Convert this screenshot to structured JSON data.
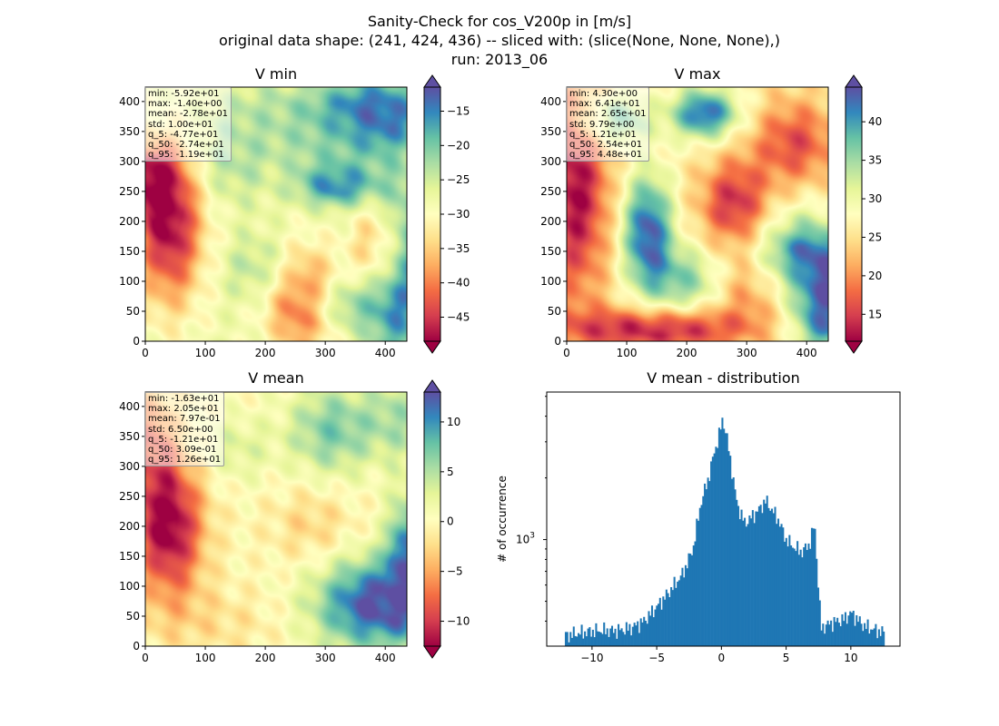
{
  "figure": {
    "title_lines": [
      "Sanity-Check for cos_V200p in [m/s]",
      "original data shape: (241, 424, 436) -- sliced with: (slice(None, None, None),)",
      "run: 2013_06"
    ]
  },
  "colormap": {
    "name": "Spectral",
    "stops": [
      "#9e0142",
      "#d53e4f",
      "#f46d43",
      "#fdae61",
      "#fee08b",
      "#ffffbf",
      "#e6f598",
      "#abdda4",
      "#66c2a5",
      "#3288bd",
      "#5e4fa2"
    ]
  },
  "chart_data": [
    {
      "id": "vmin",
      "type": "heatmap",
      "title": "V min",
      "xlim": [
        0,
        436
      ],
      "ylim": [
        0,
        424
      ],
      "xticks": [
        0,
        100,
        200,
        300,
        400
      ],
      "yticks": [
        0,
        50,
        100,
        150,
        200,
        250,
        300,
        350,
        400
      ],
      "color_range": [
        -48.5,
        -11.5
      ],
      "colorbar_ticks": [
        -45,
        -40,
        -35,
        -30,
        -25,
        -20,
        -15
      ],
      "stats": [
        "min: -5.92e+01",
        "max: -1.40e+00",
        "mean: -2.78e+01",
        "std: 1.00e+01",
        "q_5: -4.77e+01",
        "q_50: -2.74e+01",
        "q_95: -1.19e+01"
      ],
      "field_base": -28,
      "features": [
        {
          "x": 40,
          "y": 190,
          "v": -48,
          "sx": 40,
          "sy": 90
        },
        {
          "x": 15,
          "y": 270,
          "v": -46,
          "sx": 30,
          "sy": 40
        },
        {
          "x": 380,
          "y": 380,
          "v": -13,
          "sx": 70,
          "sy": 45
        },
        {
          "x": 320,
          "y": 260,
          "v": -15,
          "sx": 45,
          "sy": 25
        },
        {
          "x": 420,
          "y": 110,
          "v": -13,
          "sx": 35,
          "sy": 110
        },
        {
          "x": 260,
          "y": 70,
          "v": -44,
          "sx": 40,
          "sy": 60
        },
        {
          "x": 390,
          "y": 160,
          "v": -42,
          "sx": 30,
          "sy": 50
        },
        {
          "x": 140,
          "y": 300,
          "v": -23,
          "sx": 50,
          "sy": 50
        },
        {
          "x": 200,
          "y": 120,
          "v": -22,
          "sx": 45,
          "sy": 40
        },
        {
          "x": 330,
          "y": 60,
          "v": -20,
          "sx": 40,
          "sy": 30
        },
        {
          "x": 300,
          "y": 330,
          "v": -24,
          "sx": 60,
          "sy": 40
        },
        {
          "x": 200,
          "y": 380,
          "v": -24,
          "sx": 60,
          "sy": 40
        }
      ]
    },
    {
      "id": "vmax",
      "type": "heatmap",
      "title": "V max",
      "xlim": [
        0,
        436
      ],
      "ylim": [
        0,
        424
      ],
      "xticks": [
        0,
        100,
        200,
        300,
        400
      ],
      "yticks": [
        0,
        50,
        100,
        150,
        200,
        250,
        300,
        350,
        400
      ],
      "color_range": [
        11.5,
        44.5
      ],
      "colorbar_ticks": [
        15,
        20,
        25,
        30,
        35,
        40
      ],
      "stats": [
        "min: 4.30e+00",
        "max: 6.41e+01",
        "mean: 2.65e+01",
        "std: 9.79e+00",
        "q_5: 1.21e+01",
        "q_50: 2.54e+01",
        "q_95: 4.48e+01"
      ],
      "field_base": 26,
      "features": [
        {
          "x": 135,
          "y": 180,
          "v": 44,
          "sx": 30,
          "sy": 70
        },
        {
          "x": 230,
          "y": 380,
          "v": 43,
          "sx": 40,
          "sy": 30
        },
        {
          "x": 390,
          "y": 120,
          "v": 44,
          "sx": 50,
          "sy": 60
        },
        {
          "x": 430,
          "y": 60,
          "v": 43,
          "sx": 30,
          "sy": 60
        },
        {
          "x": 80,
          "y": 370,
          "v": 38,
          "sx": 40,
          "sy": 30
        },
        {
          "x": 15,
          "y": 250,
          "v": 12,
          "sx": 40,
          "sy": 130
        },
        {
          "x": 150,
          "y": 20,
          "v": 12,
          "sx": 110,
          "sy": 25
        },
        {
          "x": 280,
          "y": 230,
          "v": 14,
          "sx": 40,
          "sy": 50
        },
        {
          "x": 330,
          "y": 80,
          "v": 17,
          "sx": 50,
          "sy": 40
        },
        {
          "x": 380,
          "y": 330,
          "v": 16,
          "sx": 50,
          "sy": 50
        },
        {
          "x": 200,
          "y": 100,
          "v": 36,
          "sx": 40,
          "sy": 40
        }
      ]
    },
    {
      "id": "vmean",
      "type": "heatmap",
      "title": "V mean",
      "xlim": [
        0,
        436
      ],
      "ylim": [
        0,
        424
      ],
      "xticks": [
        0,
        100,
        200,
        300,
        400
      ],
      "yticks": [
        0,
        50,
        100,
        150,
        200,
        250,
        300,
        350,
        400
      ],
      "color_range": [
        -12.5,
        13
      ],
      "colorbar_ticks": [
        -10,
        -5,
        0,
        5,
        10
      ],
      "stats": [
        "min: -1.63e+01",
        "max: 2.05e+01",
        "mean: 7.97e-01",
        "std: 6.50e+00",
        "q_5: -1.21e+01",
        "q_50: 3.09e-01",
        "q_95: 1.26e+01"
      ],
      "field_base": 0,
      "features": [
        {
          "x": 40,
          "y": 200,
          "v": -13,
          "sx": 40,
          "sy": 85
        },
        {
          "x": 10,
          "y": 330,
          "v": -7,
          "sx": 25,
          "sy": 70
        },
        {
          "x": 380,
          "y": 70,
          "v": 13,
          "sx": 70,
          "sy": 55
        },
        {
          "x": 430,
          "y": 150,
          "v": 10,
          "sx": 20,
          "sy": 70
        },
        {
          "x": 310,
          "y": 360,
          "v": 7,
          "sx": 50,
          "sy": 55
        },
        {
          "x": 420,
          "y": 380,
          "v": 5,
          "sx": 40,
          "sy": 50
        },
        {
          "x": 150,
          "y": 330,
          "v": 3,
          "sx": 45,
          "sy": 40
        },
        {
          "x": 120,
          "y": 40,
          "v": -2,
          "sx": 80,
          "sy": 40
        },
        {
          "x": 280,
          "y": 200,
          "v": -3,
          "sx": 50,
          "sy": 50
        }
      ]
    },
    {
      "id": "hist",
      "type": "bar",
      "title": "V mean - distribution",
      "ylabel": "# of occurrence",
      "y_scale": "log",
      "y_major_tick_label": "10^3",
      "xlim": [
        -13.5,
        13.8
      ],
      "ylim_log10": [
        2.48,
        3.72
      ],
      "xticks": [
        -10,
        -5,
        0,
        5,
        10
      ],
      "bin_edges": [
        -12.1,
        12.6
      ],
      "histogram_profile": [
        {
          "x": -12.1,
          "count": 340
        },
        {
          "x": -11,
          "count": 350
        },
        {
          "x": -9.5,
          "count": 360
        },
        {
          "x": -8,
          "count": 360
        },
        {
          "x": -7,
          "count": 370
        },
        {
          "x": -6,
          "count": 400
        },
        {
          "x": -5,
          "count": 470
        },
        {
          "x": -4,
          "count": 560
        },
        {
          "x": -3,
          "count": 680
        },
        {
          "x": -2.2,
          "count": 900
        },
        {
          "x": -1.6,
          "count": 1500
        },
        {
          "x": -1.0,
          "count": 2000
        },
        {
          "x": -0.6,
          "count": 2600
        },
        {
          "x": -0.2,
          "count": 3200
        },
        {
          "x": 0.1,
          "count": 3900
        },
        {
          "x": 0.4,
          "count": 3200
        },
        {
          "x": 0.8,
          "count": 2200
        },
        {
          "x": 1.2,
          "count": 1500
        },
        {
          "x": 1.8,
          "count": 1200
        },
        {
          "x": 2.4,
          "count": 1300
        },
        {
          "x": 2.9,
          "count": 1400
        },
        {
          "x": 3.4,
          "count": 1550
        },
        {
          "x": 3.9,
          "count": 1400
        },
        {
          "x": 4.4,
          "count": 1250
        },
        {
          "x": 5.0,
          "count": 1000
        },
        {
          "x": 5.6,
          "count": 920
        },
        {
          "x": 6.2,
          "count": 870
        },
        {
          "x": 6.8,
          "count": 950
        },
        {
          "x": 7.2,
          "count": 1200
        },
        {
          "x": 7.45,
          "count": 650
        },
        {
          "x": 7.7,
          "count": 370
        },
        {
          "x": 8.4,
          "count": 390
        },
        {
          "x": 9.5,
          "count": 410
        },
        {
          "x": 10.0,
          "count": 440
        },
        {
          "x": 11.0,
          "count": 380
        },
        {
          "x": 12.0,
          "count": 360
        },
        {
          "x": 12.6,
          "count": 350
        }
      ]
    }
  ]
}
